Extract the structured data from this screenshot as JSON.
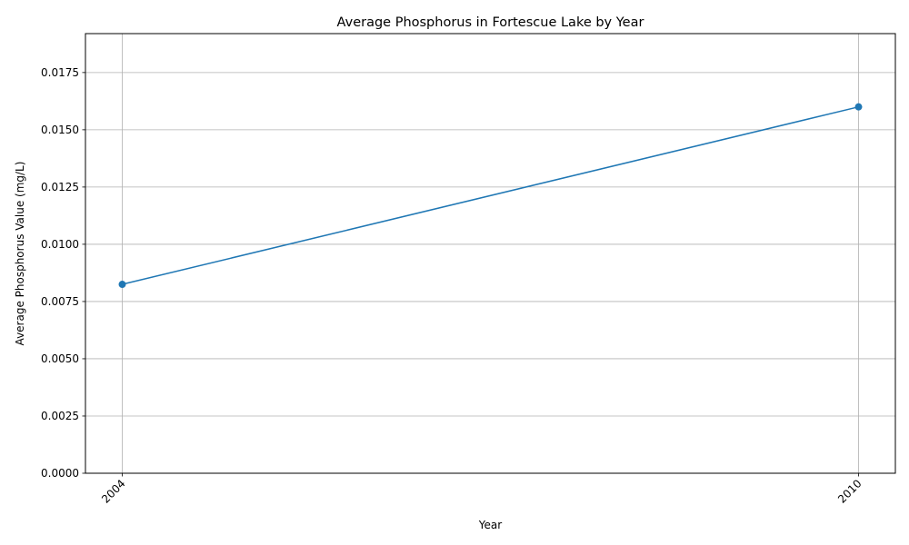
{
  "chart_data": {
    "type": "line",
    "title": "Average Phosphorus in Fortescue Lake by Year",
    "xlabel": "Year",
    "ylabel": "Average Phosphorus Value (mg/L)",
    "x": [
      2004,
      2010
    ],
    "x_tick_labels": [
      "2004",
      "2010"
    ],
    "series": [
      {
        "values": [
          0.00825,
          0.016
        ],
        "color": "#1f77b4",
        "marker": "circle"
      }
    ],
    "xlim": [
      2003.7,
      2010.3
    ],
    "ylim": [
      0,
      0.0192
    ],
    "y_ticks": [
      0.0,
      0.0025,
      0.005,
      0.0075,
      0.01,
      0.0125,
      0.015,
      0.0175
    ],
    "y_tick_labels": [
      "0.0000",
      "0.0025",
      "0.0050",
      "0.0075",
      "0.0100",
      "0.0125",
      "0.0150",
      "0.0175"
    ],
    "grid": true
  }
}
